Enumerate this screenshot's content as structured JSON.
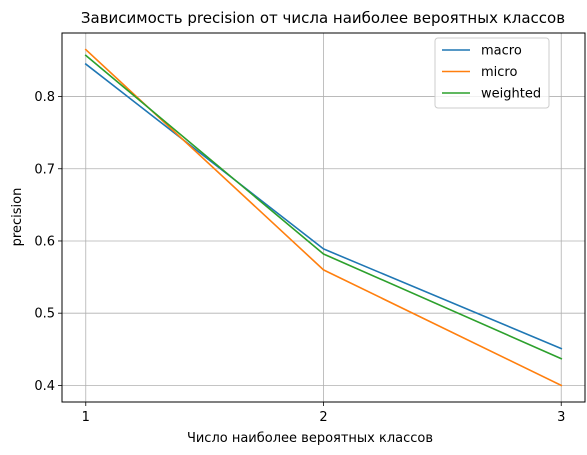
{
  "chart_data": {
    "type": "line",
    "title": "Зависимость precision от числа наиболее вероятных классов",
    "xlabel": "Число наиболее вероятных классов",
    "ylabel": "precision",
    "x": [
      1,
      2,
      3
    ],
    "xlim": [
      0.9,
      3.1
    ],
    "ylim": [
      0.377,
      0.888
    ],
    "xticks": [
      1,
      2,
      3
    ],
    "yticks": [
      0.4,
      0.5,
      0.6,
      0.7,
      0.8
    ],
    "xtick_labels": [
      "1",
      "2",
      "3"
    ],
    "ytick_labels": [
      "0.4",
      "0.5",
      "0.6",
      "0.7",
      "0.8"
    ],
    "grid": true,
    "legend_position": "upper-right",
    "series": [
      {
        "name": "macro",
        "color": "#1f77b4",
        "values": [
          0.845,
          0.589,
          0.451
        ]
      },
      {
        "name": "micro",
        "color": "#ff7f0e",
        "values": [
          0.865,
          0.56,
          0.4
        ]
      },
      {
        "name": "weighted",
        "color": "#2ca02c",
        "values": [
          0.857,
          0.582,
          0.437
        ]
      }
    ]
  }
}
